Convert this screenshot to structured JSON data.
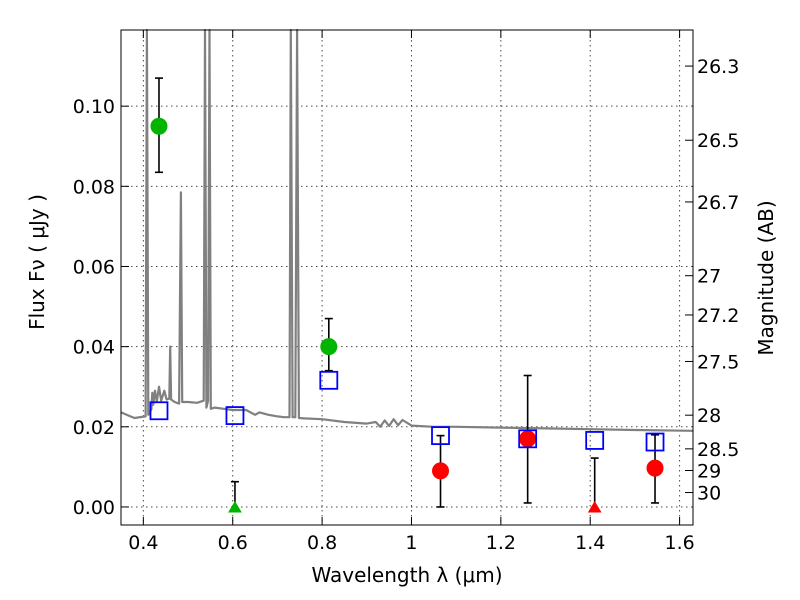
{
  "chart_data": {
    "type": "scatter",
    "xlabel": "Wavelength  λ (μm)",
    "ylabel": "Flux  Fν  ( μJy )",
    "ylabel_right": "Magnitude (AB)",
    "xlim": [
      0.35,
      1.63
    ],
    "ylim": [
      -0.0045,
      0.119
    ],
    "grid": true,
    "x_ticks": [
      0.4,
      0.6,
      0.8,
      1.0,
      1.2,
      1.4,
      1.6
    ],
    "x_tick_labels": [
      "0.4",
      "0.6",
      "0.8",
      "1",
      "1.2",
      "1.4",
      "1.6"
    ],
    "y_ticks": [
      0.0,
      0.02,
      0.04,
      0.06,
      0.08,
      0.1
    ],
    "y_tick_labels": [
      "0.00",
      "0.02",
      "0.04",
      "0.06",
      "0.08",
      "0.10"
    ],
    "magnitude_ticks": [
      {
        "label": "26.3",
        "flux": 0.11
      },
      {
        "label": "26.5",
        "flux": 0.0915
      },
      {
        "label": "26.7",
        "flux": 0.0761
      },
      {
        "label": "27",
        "flux": 0.0577
      },
      {
        "label": "27.2",
        "flux": 0.0479
      },
      {
        "label": "27.5",
        "flux": 0.0363
      },
      {
        "label": "28",
        "flux": 0.0229
      },
      {
        "label": "28.5",
        "flux": 0.0145
      },
      {
        "label": "29",
        "flux": 0.0091
      },
      {
        "label": "30",
        "flux": 0.0036
      }
    ],
    "series": [
      {
        "name": "green-detections",
        "marker": "circle",
        "color": "#00b400",
        "points": [
          {
            "x": 0.435,
            "y": 0.095,
            "yerr_low": 0.0835,
            "yerr_high": 0.107
          },
          {
            "x": 0.815,
            "y": 0.04,
            "yerr_low": 0.034,
            "yerr_high": 0.047
          }
        ]
      },
      {
        "name": "red-detections",
        "marker": "circle",
        "color": "#ff0000",
        "points": [
          {
            "x": 1.065,
            "y": 0.009,
            "yerr_low": 0.0,
            "yerr_high": 0.0178
          },
          {
            "x": 1.26,
            "y": 0.017,
            "yerr_low": 0.001,
            "yerr_high": 0.0328
          },
          {
            "x": 1.545,
            "y": 0.0097,
            "yerr_low": 0.001,
            "yerr_high": 0.018
          }
        ]
      },
      {
        "name": "upper-limits",
        "marker": "triangle",
        "points": [
          {
            "x": 0.605,
            "y": -0.0005,
            "yerr_low": -0.0005,
            "yerr_high": 0.0063,
            "color": "#00b400"
          },
          {
            "x": 1.41,
            "y": -0.0005,
            "yerr_low": -0.0005,
            "yerr_high": 0.0122,
            "color": "#ff0000"
          }
        ]
      },
      {
        "name": "model-photometry",
        "marker": "open-square",
        "color": "#0000ff",
        "points": [
          {
            "x": 0.435,
            "y": 0.024
          },
          {
            "x": 0.605,
            "y": 0.0228
          },
          {
            "x": 0.815,
            "y": 0.0316
          },
          {
            "x": 1.065,
            "y": 0.0178
          },
          {
            "x": 1.26,
            "y": 0.017
          },
          {
            "x": 1.41,
            "y": 0.0166
          },
          {
            "x": 1.545,
            "y": 0.0162
          }
        ]
      },
      {
        "name": "model-spectrum",
        "marker": "line",
        "color": "#808080",
        "points": [
          {
            "x": 0.35,
            "y": 0.0236
          },
          {
            "x": 0.38,
            "y": 0.0222
          },
          {
            "x": 0.405,
            "y": 0.0226
          },
          {
            "x": 0.408,
            "y": 0.119
          },
          {
            "x": 0.411,
            "y": 0.023
          },
          {
            "x": 0.418,
            "y": 0.0244
          },
          {
            "x": 0.42,
            "y": 0.0285
          },
          {
            "x": 0.422,
            "y": 0.0255
          },
          {
            "x": 0.426,
            "y": 0.029
          },
          {
            "x": 0.43,
            "y": 0.0262
          },
          {
            "x": 0.435,
            "y": 0.03
          },
          {
            "x": 0.44,
            "y": 0.0265
          },
          {
            "x": 0.447,
            "y": 0.029
          },
          {
            "x": 0.452,
            "y": 0.0268
          },
          {
            "x": 0.458,
            "y": 0.027
          },
          {
            "x": 0.46,
            "y": 0.04
          },
          {
            "x": 0.462,
            "y": 0.0268
          },
          {
            "x": 0.47,
            "y": 0.0262
          },
          {
            "x": 0.48,
            "y": 0.0258
          },
          {
            "x": 0.484,
            "y": 0.0785
          },
          {
            "x": 0.487,
            "y": 0.0262
          },
          {
            "x": 0.5,
            "y": 0.0262
          },
          {
            "x": 0.52,
            "y": 0.026
          },
          {
            "x": 0.535,
            "y": 0.0265
          },
          {
            "x": 0.538,
            "y": 0.119
          },
          {
            "x": 0.541,
            "y": 0.0248
          },
          {
            "x": 0.545,
            "y": 0.0265
          },
          {
            "x": 0.548,
            "y": 0.119
          },
          {
            "x": 0.551,
            "y": 0.0245
          },
          {
            "x": 0.56,
            "y": 0.0248
          },
          {
            "x": 0.58,
            "y": 0.0245
          },
          {
            "x": 0.6,
            "y": 0.0242
          },
          {
            "x": 0.63,
            "y": 0.0242
          },
          {
            "x": 0.65,
            "y": 0.023
          },
          {
            "x": 0.66,
            "y": 0.0236
          },
          {
            "x": 0.68,
            "y": 0.023
          },
          {
            "x": 0.7,
            "y": 0.0226
          },
          {
            "x": 0.715,
            "y": 0.0224
          },
          {
            "x": 0.727,
            "y": 0.0224
          },
          {
            "x": 0.73,
            "y": 0.119
          },
          {
            "x": 0.734,
            "y": 0.0224
          },
          {
            "x": 0.74,
            "y": 0.0224
          },
          {
            "x": 0.744,
            "y": 0.119
          },
          {
            "x": 0.748,
            "y": 0.0222
          },
          {
            "x": 0.76,
            "y": 0.0221
          },
          {
            "x": 0.8,
            "y": 0.0219
          },
          {
            "x": 0.85,
            "y": 0.0212
          },
          {
            "x": 0.9,
            "y": 0.0208
          },
          {
            "x": 0.92,
            "y": 0.0212
          },
          {
            "x": 0.93,
            "y": 0.02
          },
          {
            "x": 0.94,
            "y": 0.0216
          },
          {
            "x": 0.95,
            "y": 0.0202
          },
          {
            "x": 0.96,
            "y": 0.0219
          },
          {
            "x": 0.97,
            "y": 0.0204
          },
          {
            "x": 0.98,
            "y": 0.0217
          },
          {
            "x": 1.0,
            "y": 0.0203
          },
          {
            "x": 1.05,
            "y": 0.02
          },
          {
            "x": 1.1,
            "y": 0.02
          },
          {
            "x": 1.2,
            "y": 0.0198
          },
          {
            "x": 1.3,
            "y": 0.0196
          },
          {
            "x": 1.4,
            "y": 0.0194
          },
          {
            "x": 1.5,
            "y": 0.0192
          },
          {
            "x": 1.63,
            "y": 0.019
          }
        ]
      }
    ]
  }
}
